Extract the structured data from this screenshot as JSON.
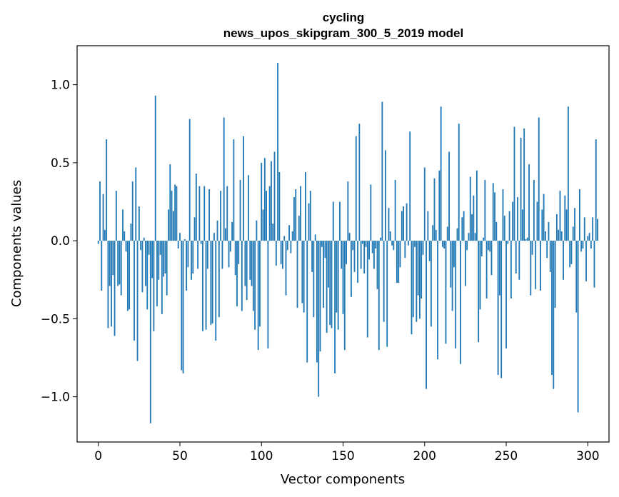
{
  "chart_data": {
    "type": "bar",
    "title": "cycling",
    "subtitle": "news_upos_skipgram_300_5_2019 model",
    "xlabel": "Vector components",
    "ylabel": "Components values",
    "xlim": [
      -13,
      313
    ],
    "ylim": [
      -1.29,
      1.25
    ],
    "xticks": [
      0,
      50,
      100,
      150,
      200,
      250,
      300
    ],
    "xtick_labels": [
      "0",
      "50",
      "100",
      "150",
      "200",
      "250",
      "300"
    ],
    "yticks": [
      -1.0,
      -0.5,
      0.0,
      0.5,
      1.0
    ],
    "ytick_labels": [
      "−1.0",
      "−0.5",
      "0.0",
      "0.5",
      "1.0"
    ],
    "bar_color": "#1f77b4",
    "values": [
      -0.02,
      0.38,
      -0.32,
      0.3,
      0.07,
      0.65,
      -0.56,
      -0.29,
      -0.55,
      -0.22,
      -0.61,
      0.32,
      -0.29,
      -0.28,
      -0.35,
      0.2,
      0.06,
      -0.07,
      -0.45,
      -0.44,
      0.11,
      0.38,
      -0.64,
      0.47,
      -0.77,
      0.22,
      -0.06,
      -0.33,
      0.02,
      -0.29,
      -0.44,
      -0.09,
      -1.17,
      -0.24,
      -0.58,
      0.93,
      -0.42,
      -0.25,
      -0.09,
      -0.47,
      -0.23,
      -0.21,
      -0.35,
      0.2,
      0.49,
      0.32,
      0.19,
      0.36,
      0.35,
      -0.05,
      0.05,
      -0.83,
      -0.85,
      0.01,
      -0.32,
      -0.17,
      0.78,
      -0.25,
      -0.21,
      0.15,
      0.43,
      -0.18,
      0.35,
      -0.02,
      -0.58,
      0.35,
      -0.57,
      -0.18,
      0.33,
      -0.54,
      -0.53,
      0.05,
      -0.64,
      0.13,
      -0.49,
      0.32,
      -0.18,
      0.79,
      0.08,
      0.35,
      -0.17,
      -0.07,
      0.12,
      0.65,
      -0.22,
      -0.42,
      -0.15,
      0.39,
      -0.45,
      0.67,
      -0.29,
      -0.38,
      0.42,
      -0.25,
      -0.29,
      -0.45,
      -0.57,
      0.13,
      -0.7,
      -0.55,
      0.5,
      0.2,
      0.53,
      0.32,
      -0.69,
      0.35,
      0.51,
      0.11,
      0.57,
      -0.16,
      1.14,
      0.44,
      -0.15,
      -0.18,
      0.03,
      -0.35,
      -0.06,
      0.1,
      -0.08,
      0.06,
      0.28,
      0.33,
      -0.43,
      0.16,
      0.35,
      -0.4,
      -0.46,
      0.44,
      -0.78,
      0.24,
      0.32,
      -0.2,
      -0.49,
      0.04,
      -0.78,
      -1.0,
      -0.71,
      -0.04,
      -0.43,
      -0.11,
      -0.59,
      -0.3,
      -0.54,
      -0.56,
      0.25,
      -0.85,
      -0.46,
      -0.57,
      0.25,
      -0.18,
      -0.47,
      -0.7,
      -0.15,
      0.38,
      0.05,
      -0.36,
      -0.06,
      -0.2,
      0.67,
      -0.27,
      0.75,
      -0.18,
      -0.02,
      -0.21,
      -0.04,
      -0.62,
      -0.12,
      0.36,
      -0.08,
      -0.18,
      -0.05,
      -0.31,
      -0.7,
      0.02,
      0.89,
      -0.52,
      0.58,
      -0.68,
      0.21,
      0.06,
      -0.03,
      -0.06,
      0.39,
      -0.27,
      -0.27,
      -0.17,
      0.19,
      0.22,
      -0.11,
      0.24,
      -0.03,
      0.7,
      -0.6,
      -0.49,
      -0.04,
      -0.52,
      -0.35,
      -0.5,
      -0.37,
      -0.09,
      0.47,
      -0.95,
      0.19,
      -0.13,
      -0.55,
      0.1,
      0.4,
      0.07,
      -0.76,
      0.45,
      0.86,
      -0.04,
      -0.05,
      -0.66,
      0.09,
      0.57,
      -0.3,
      -0.45,
      -0.17,
      -0.69,
      0.08,
      0.75,
      -0.79,
      0.15,
      0.19,
      -0.29,
      -0.06,
      0.05,
      0.41,
      0.17,
      0.29,
      0.05,
      0.45,
      -0.65,
      -0.44,
      -0.1,
      0.02,
      0.39,
      -0.37,
      -0.06,
      -0.07,
      -0.22,
      0.37,
      0.31,
      0.12,
      -0.86,
      -0.35,
      -0.88,
      0.33,
      0.16,
      -0.69,
      -0.02,
      0.19,
      -0.37,
      0.25,
      0.73,
      -0.21,
      0.28,
      -0.25,
      0.66,
      0.2,
      0.72,
      0.01,
      0.02,
      0.49,
      -0.35,
      -0.09,
      0.39,
      -0.31,
      0.25,
      0.79,
      -0.32,
      0.2,
      0.3,
      0.06,
      -0.11,
      0.12,
      -0.2,
      -0.86,
      -0.95,
      -0.43,
      0.17,
      0.07,
      0.32,
      0.06,
      -0.25,
      0.29,
      0.2,
      0.86,
      -0.17,
      -0.15,
      0.09,
      0.21,
      -0.46,
      -1.1,
      0.33,
      -0.07,
      -0.05,
      0.15,
      -0.26,
      0.03,
      0.05,
      -0.05,
      0.15,
      -0.3,
      0.65,
      0.14
    ]
  }
}
